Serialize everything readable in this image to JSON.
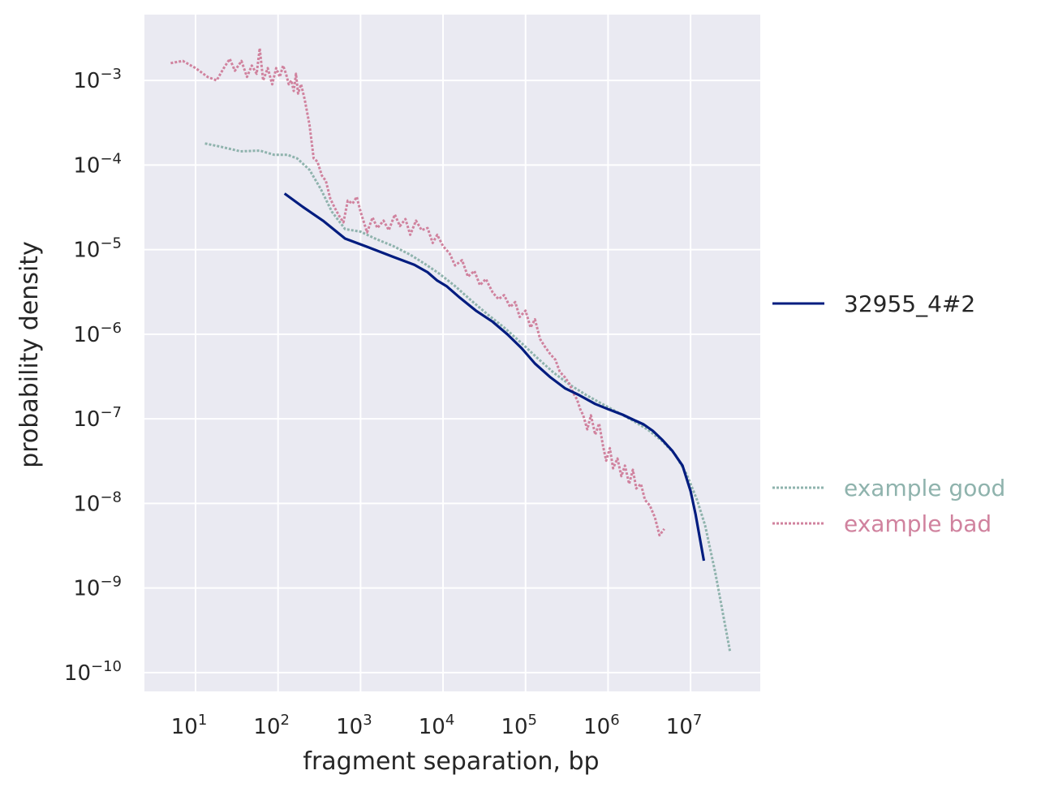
{
  "chart_data": {
    "type": "line",
    "title": "",
    "xlabel": "fragment separation, bp",
    "ylabel": "probability density",
    "xscale": "log",
    "yscale": "log",
    "xlim": [
      2.4,
      70000000
    ],
    "ylim": [
      6e-11,
      0.006
    ],
    "grid": true,
    "xticks": [
      {
        "base": "10",
        "exp": "1",
        "value": 10
      },
      {
        "base": "10",
        "exp": "2",
        "value": 100
      },
      {
        "base": "10",
        "exp": "3",
        "value": 1000
      },
      {
        "base": "10",
        "exp": "4",
        "value": 10000
      },
      {
        "base": "10",
        "exp": "5",
        "value": 100000
      },
      {
        "base": "10",
        "exp": "6",
        "value": 1000000
      },
      {
        "base": "10",
        "exp": "7",
        "value": 10000000
      }
    ],
    "yticks": [
      {
        "base": "10",
        "exp": "−3",
        "value": 0.001
      },
      {
        "base": "10",
        "exp": "−4",
        "value": 0.0001
      },
      {
        "base": "10",
        "exp": "−5",
        "value": 1e-05
      },
      {
        "base": "10",
        "exp": "−6",
        "value": 1e-06
      },
      {
        "base": "10",
        "exp": "−7",
        "value": 1e-07
      },
      {
        "base": "10",
        "exp": "−8",
        "value": 1e-08
      },
      {
        "base": "10",
        "exp": "−9",
        "value": 1e-09
      },
      {
        "base": "10",
        "exp": "−10",
        "value": 1e-10
      }
    ],
    "series": [
      {
        "name": "32955_4#2",
        "color": "#001c7f",
        "style": "solid",
        "x": [
          120,
          200,
          350,
          650,
          1200,
          2500,
          4500,
          6500,
          8500,
          11000,
          16000,
          25000,
          40000,
          60000,
          90000,
          130000,
          200000,
          300000,
          450000,
          700000,
          1000000,
          1500000,
          2000000,
          2700000,
          3500000,
          4500000,
          6000000,
          8000000,
          10000000,
          11500000,
          13000000,
          14500000
        ],
        "y": [
          4.6e-05,
          3.2e-05,
          2.2e-05,
          1.35e-05,
          1.08e-05,
          8.2e-06,
          6.6e-06,
          5.4e-06,
          4.3e-06,
          3.7e-06,
          2.7e-06,
          1.9e-06,
          1.4e-06,
          1e-06,
          6.8e-07,
          4.5e-07,
          3.1e-07,
          2.3e-07,
          1.9e-07,
          1.5e-07,
          1.3e-07,
          1.12e-07,
          9.8e-08,
          8.6e-08,
          7.2e-08,
          5.7e-08,
          4.2e-08,
          2.8e-08,
          1.4e-08,
          7.5e-09,
          3.8e-09,
          2.1e-09
        ]
      },
      {
        "name": "example good",
        "color": "#8fb3ad",
        "style": "dotted",
        "x": [
          13,
          20,
          35,
          60,
          90,
          130,
          170,
          240,
          330,
          450,
          650,
          1000,
          1500,
          2500,
          4000,
          6000,
          9000,
          14000,
          22000,
          35000,
          55000,
          90000,
          140000,
          220000,
          350000,
          550000,
          850000,
          1300000,
          2000000,
          3000000,
          4500000,
          6500000,
          9000000,
          12000000,
          15000000,
          20000000,
          30000000
        ],
        "y": [
          0.00018,
          0.000165,
          0.000145,
          0.000148,
          0.000132,
          0.000132,
          0.00012,
          8.8e-05,
          5.2e-05,
          2.8e-05,
          1.75e-05,
          1.63e-05,
          1.35e-05,
          1.1e-05,
          8.7e-06,
          6.8e-06,
          5.2e-06,
          3.7e-06,
          2.5e-06,
          1.7e-06,
          1.2e-06,
          7.8e-07,
          5.2e-07,
          3.5e-07,
          2.5e-07,
          1.9e-07,
          1.5e-07,
          1.2e-07,
          9.5e-08,
          7.5e-08,
          5.5e-08,
          3.8e-08,
          2.2e-08,
          1.1e-08,
          5.5e-09,
          1.5e-09,
          1.8e-10
        ]
      },
      {
        "name": "example bad",
        "color": "#d0829e",
        "style": "dotted",
        "x": [
          5,
          7,
          10,
          14,
          18,
          22,
          26,
          30,
          36,
          42,
          48,
          55,
          60,
          66,
          75,
          85,
          95,
          105,
          115,
          125,
          135,
          145,
          155,
          165,
          175,
          190,
          210,
          240,
          270,
          300,
          340,
          380,
          430,
          480,
          550,
          620,
          700,
          800,
          900,
          1000,
          1200,
          1400,
          1600,
          1900,
          2200,
          2600,
          3000,
          3500,
          4000,
          4700,
          5500,
          6500,
          7500,
          8500,
          10000,
          12000,
          14000,
          17000,
          20000,
          24000,
          28000,
          33000,
          40000,
          47000,
          55000,
          65000,
          75000,
          85000,
          100000,
          115000,
          130000,
          150000,
          170000,
          200000,
          230000,
          260000,
          300000,
          340000,
          380000,
          420000,
          460000,
          500000,
          560000,
          620000,
          700000,
          780000,
          870000,
          950000,
          1050000,
          1150000,
          1300000,
          1450000,
          1600000,
          1800000,
          2000000,
          2200000,
          2500000,
          2800000,
          3200000,
          3700000,
          4200000,
          4800000
        ],
        "y": [
          0.0016,
          0.0017,
          0.0014,
          0.0011,
          0.001,
          0.0014,
          0.0018,
          0.0013,
          0.0017,
          0.0011,
          0.0015,
          0.0012,
          0.0024,
          0.001,
          0.0014,
          0.0009,
          0.0014,
          0.0011,
          0.0015,
          0.0012,
          0.0009,
          0.001,
          0.00075,
          0.0012,
          0.0007,
          0.0009,
          0.0006,
          0.0003,
          0.00012,
          0.00011,
          7.5e-05,
          6.5e-05,
          4e-05,
          3.2e-05,
          2.5e-05,
          2.1e-05,
          3.8e-05,
          3.5e-05,
          4.2e-05,
          2.8e-05,
          1.6e-05,
          2.4e-05,
          1.8e-05,
          2.2e-05,
          1.7e-05,
          2.6e-05,
          1.9e-05,
          2.3e-05,
          1.5e-05,
          2.2e-05,
          1.7e-05,
          1.8e-05,
          1.2e-05,
          1.5e-05,
          1.1e-05,
          9e-06,
          6.5e-06,
          7.5e-06,
          4.8e-06,
          5.6e-06,
          3.8e-06,
          4.5e-06,
          3.1e-06,
          2.6e-06,
          2.9e-06,
          2.1e-06,
          2.4e-06,
          1.6e-06,
          1.9e-06,
          1.2e-06,
          1.5e-06,
          8.8e-07,
          7.2e-07,
          5.8e-07,
          5e-07,
          3.6e-07,
          3.1e-07,
          2.6e-07,
          2e-07,
          1.7e-07,
          1.3e-07,
          1.1e-07,
          7.5e-08,
          1.1e-07,
          6.5e-08,
          8.8e-08,
          4.8e-08,
          3.2e-08,
          4.5e-08,
          2.6e-08,
          3.4e-08,
          2.1e-08,
          2.8e-08,
          1.7e-08,
          2.5e-08,
          1.5e-08,
          1.7e-08,
          1.1e-08,
          9.5e-09,
          6.8e-09,
          4.2e-09,
          5e-09
        ]
      }
    ],
    "legend": {
      "placement": "right",
      "groups": [
        [
          "32955_4#2"
        ],
        [
          "example good",
          "example bad"
        ]
      ]
    }
  }
}
